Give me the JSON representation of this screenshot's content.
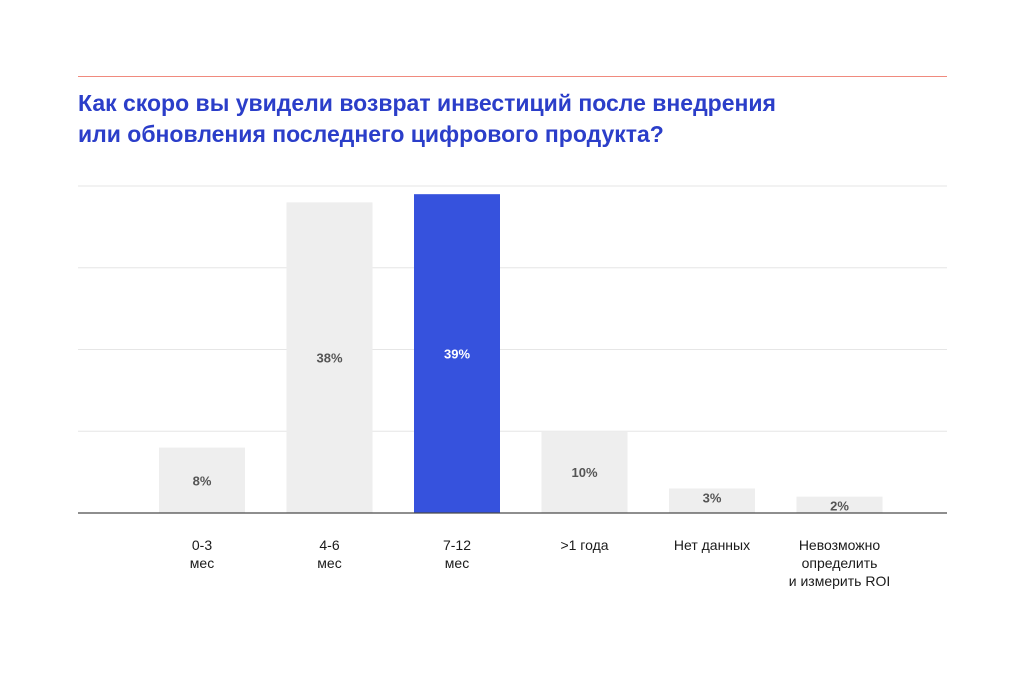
{
  "title_lines": [
    "Как скоро вы увидели возврат инвестиций после внедрения",
    "или обновления последнего цифрового продукта?"
  ],
  "colors": {
    "accent_bar": "#3652dd",
    "default_bar": "#eeeeee",
    "rule": "#f08a7e",
    "title": "#2b3ec9",
    "grid": "#e6e6e6",
    "axis": "#4a4a4a",
    "label_default": "#555555",
    "label_accent": "#ffffff"
  },
  "chart_data": {
    "type": "bar",
    "categories": [
      [
        "0-3",
        "мес"
      ],
      [
        "4-6",
        "мес"
      ],
      [
        "7-12",
        "мес"
      ],
      [
        ">1 года"
      ],
      [
        "Нет данных"
      ],
      [
        "Невозможно",
        "определить",
        "и измерить ROI"
      ]
    ],
    "values": [
      8,
      38,
      39,
      10,
      3,
      2
    ],
    "value_labels": [
      "8%",
      "38%",
      "39%",
      "10%",
      "3%",
      "2%"
    ],
    "highlight_index": 2,
    "ylim": [
      0,
      40
    ],
    "gridlines": [
      10,
      20,
      30,
      40
    ],
    "xlabel": "",
    "ylabel": "",
    "grid": true,
    "legend": "none"
  }
}
